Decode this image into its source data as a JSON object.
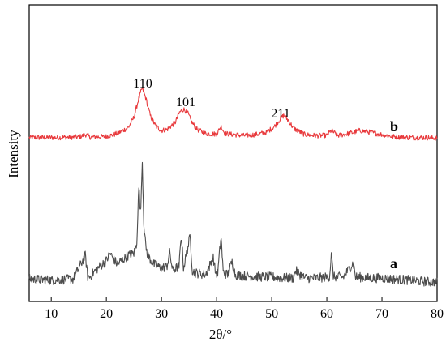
{
  "chart_data": {
    "type": "line",
    "title": "",
    "xlabel": "2θ/°",
    "ylabel": "Intensity",
    "xlim": [
      6,
      80
    ],
    "x_ticks": [
      10,
      20,
      30,
      40,
      50,
      60,
      70,
      80
    ],
    "y_ticks_shown": false,
    "grid": false,
    "legend": "none",
    "series": [
      {
        "name": "b",
        "color": "#e8393c",
        "x": [
          6,
          10,
          15,
          16.3,
          17,
          20,
          22,
          24,
          25,
          25.8,
          26.5,
          27.2,
          28,
          29,
          30,
          31,
          32.5,
          33.3,
          34,
          34.7,
          35.5,
          36.5,
          38,
          40,
          40.8,
          41.5,
          43,
          45,
          47,
          49,
          50.5,
          51.5,
          52.2,
          53,
          54,
          56,
          58,
          60,
          60.8,
          62,
          64,
          66,
          68,
          70,
          72,
          75,
          78,
          80
        ],
        "y": [
          0.5,
          0.5,
          0.55,
          0.8,
          0.55,
          0.6,
          0.9,
          1.5,
          2.5,
          4.2,
          5.4,
          4.3,
          2.6,
          1.6,
          1.2,
          1.3,
          2.0,
          3.0,
          3.3,
          3.0,
          2.0,
          1.3,
          0.9,
          0.85,
          1.6,
          0.9,
          0.8,
          0.7,
          0.8,
          1.0,
          1.6,
          2.3,
          2.7,
          2.2,
          1.4,
          0.8,
          0.7,
          0.7,
          1.2,
          0.7,
          0.9,
          1.2,
          1.0,
          0.8,
          0.6,
          0.5,
          0.5,
          0.45
        ]
      },
      {
        "name": "a",
        "color": "#4d4d4d",
        "x": [
          6,
          10,
          14,
          16.2,
          16.6,
          17,
          18,
          20,
          20.7,
          21.3,
          22,
          23,
          24,
          25,
          25.5,
          25.9,
          26.2,
          26.5,
          26.8,
          27.1,
          27.5,
          28.5,
          30,
          31,
          31.5,
          32,
          33.2,
          33.6,
          34,
          35.2,
          35.6,
          36,
          38,
          39.4,
          39.8,
          40.2,
          40.8,
          41.2,
          42,
          42.8,
          43.4,
          45,
          48,
          50,
          52,
          54,
          54.3,
          56,
          58,
          60.5,
          60.8,
          61.2,
          63,
          64.8,
          65.2,
          68,
          70,
          72,
          75,
          77,
          80
        ],
        "y": [
          0.8,
          0.7,
          0.8,
          3.0,
          1.0,
          1.0,
          1.6,
          2.5,
          3.2,
          2.6,
          2.2,
          2.6,
          3.0,
          3.2,
          4.0,
          9.5,
          6.5,
          12.0,
          6.0,
          4.0,
          3.0,
          2.2,
          1.8,
          2.0,
          3.3,
          1.6,
          2.0,
          5.0,
          1.8,
          4.8,
          1.6,
          1.4,
          1.2,
          2.8,
          1.4,
          1.3,
          4.8,
          1.4,
          1.2,
          2.4,
          1.2,
          1.1,
          1.0,
          1.0,
          0.9,
          0.9,
          1.6,
          0.9,
          0.9,
          1.0,
          3.1,
          1.0,
          1.0,
          2.3,
          1.0,
          0.9,
          0.9,
          0.8,
          0.7,
          0.6,
          0.5
        ]
      }
    ],
    "annotations": [
      {
        "text": "110",
        "x": 26.5
      },
      {
        "text": "101",
        "x": 34.0
      },
      {
        "text": "211",
        "x": 52.0
      }
    ]
  }
}
